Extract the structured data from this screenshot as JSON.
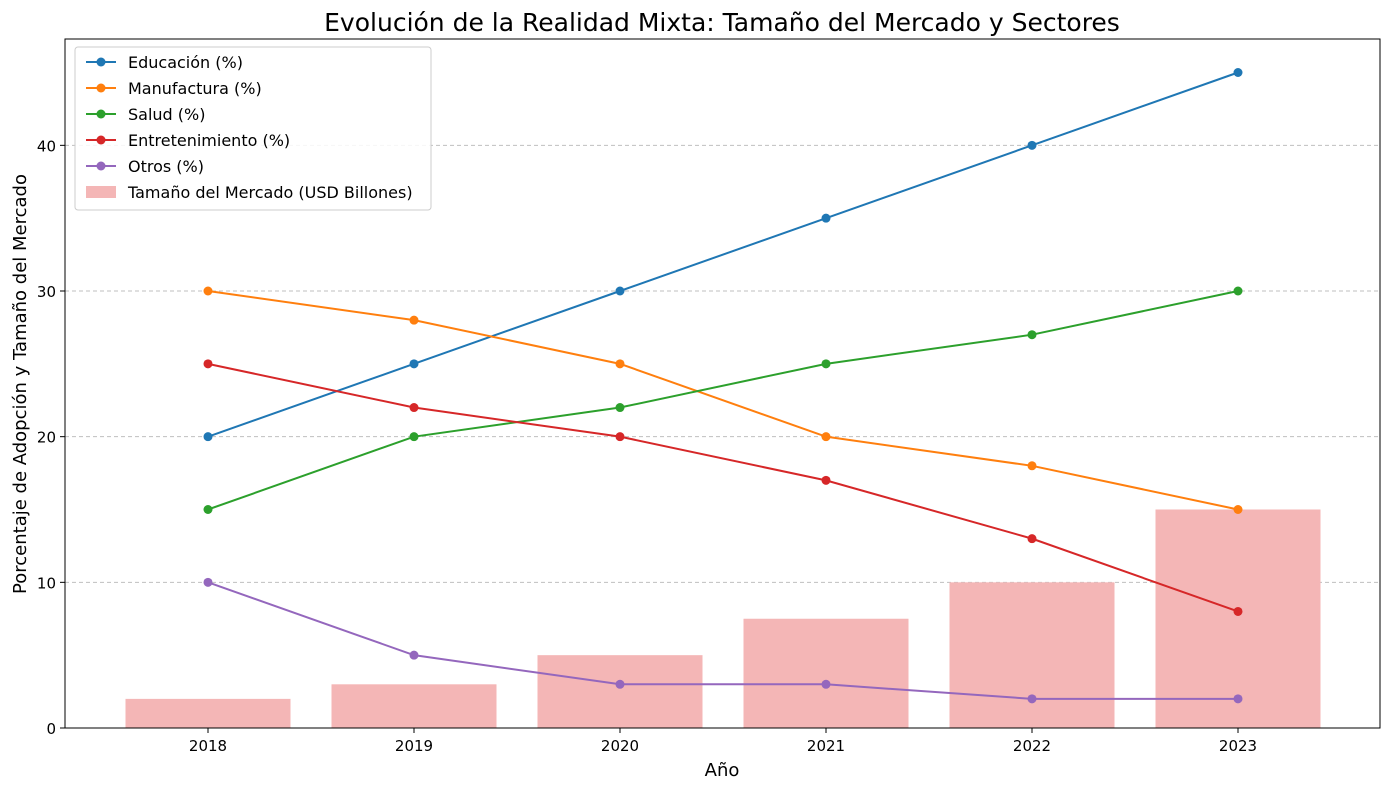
{
  "chart_data": {
    "type": "line",
    "title": "Evolución de la Realidad Mixta: Tamaño del Mercado y Sectores",
    "xlabel": "Año",
    "ylabel": "Porcentaje de Adopción y Tamaño del Mercado",
    "categories": [
      "2018",
      "2019",
      "2020",
      "2021",
      "2022",
      "2023"
    ],
    "ylim": [
      0,
      47.3
    ],
    "yticks": [
      0,
      10,
      20,
      30,
      40
    ],
    "grid": "y-dashed",
    "legend_position": "top-left",
    "bars": {
      "name": "Tamaño del Mercado (USD Billones)",
      "color": "#f4b6b6",
      "values": [
        2,
        3,
        5,
        7.5,
        10,
        15
      ]
    },
    "series": [
      {
        "name": "Educación (%)",
        "color": "#1f77b4",
        "values": [
          20,
          25,
          30,
          35,
          40,
          45
        ]
      },
      {
        "name": "Manufactura (%)",
        "color": "#ff7f0e",
        "values": [
          30,
          28,
          25,
          20,
          18,
          15
        ]
      },
      {
        "name": "Salud (%)",
        "color": "#2ca02c",
        "values": [
          15,
          20,
          22,
          25,
          27,
          30
        ]
      },
      {
        "name": "Entretenimiento (%)",
        "color": "#d62728",
        "values": [
          25,
          22,
          20,
          17,
          13,
          8
        ]
      },
      {
        "name": "Otros (%)",
        "color": "#9467bd",
        "values": [
          10,
          5,
          3,
          3,
          2,
          2
        ]
      }
    ]
  }
}
